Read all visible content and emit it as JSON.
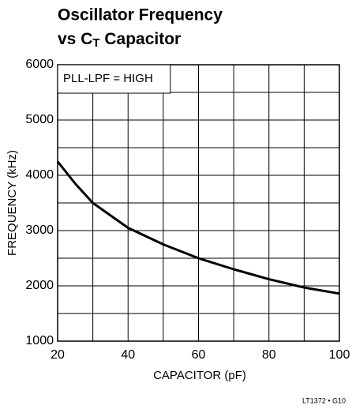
{
  "chart_data": {
    "type": "line",
    "title": {
      "line1": "Oscillator Frequency",
      "line2": "vs C",
      "line2_sub": "T",
      "line2_rest": " Capacitor"
    },
    "xlabel": "CAPACITOR (pF)",
    "ylabel": "FREQUENCY (kHz)",
    "annotation": "PLL-LPF = HIGH",
    "footnote": "LT1372 • G10",
    "x": [
      20,
      25,
      30,
      40,
      50,
      60,
      70,
      80,
      90,
      100
    ],
    "series": [
      {
        "name": "PLL-LPF = HIGH",
        "color": "#000000",
        "values": [
          4250,
          3850,
          3500,
          3050,
          2750,
          2500,
          2300,
          2120,
          1970,
          1860
        ]
      }
    ],
    "xlim": [
      20,
      100
    ],
    "ylim": [
      1000,
      6000
    ],
    "xticks": [
      20,
      40,
      60,
      80,
      100
    ],
    "yticks": [
      1000,
      2000,
      3000,
      4000,
      5000,
      6000
    ],
    "xminor": [
      30,
      50,
      70,
      90
    ],
    "yminor": [
      1500,
      2500,
      3500,
      4500,
      5500
    ],
    "grid": true
  }
}
